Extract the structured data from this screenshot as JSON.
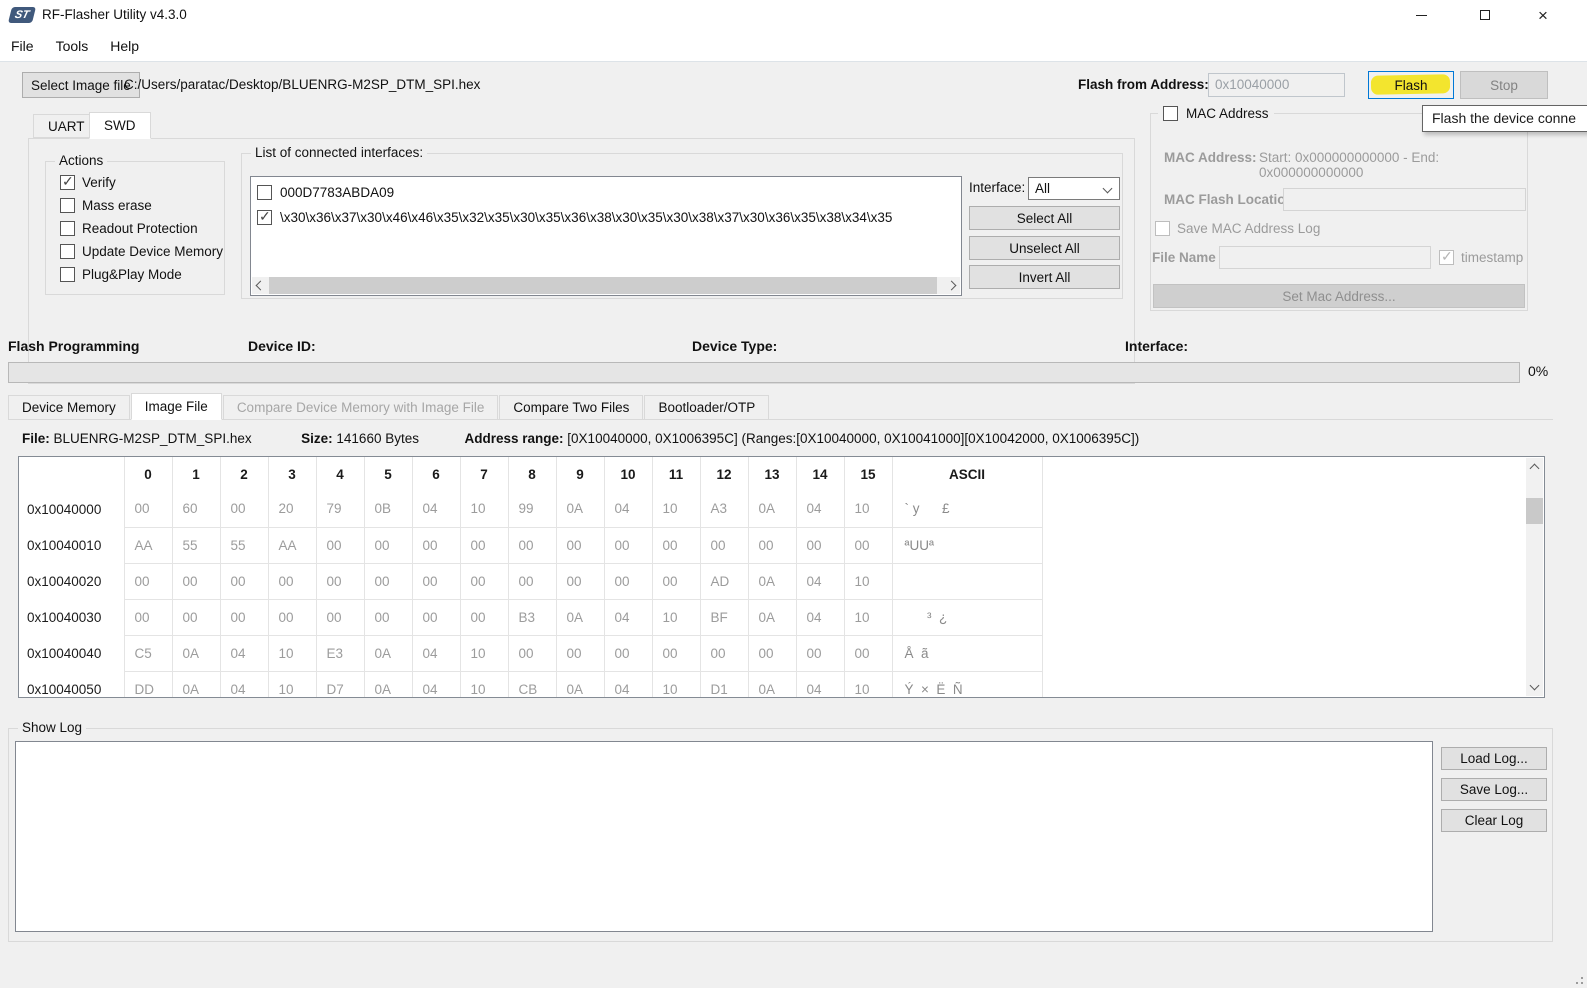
{
  "window": {
    "title": "RF-Flasher Utility v4.3.0",
    "logo_text": "ST"
  },
  "menu": {
    "items": [
      "File",
      "Tools",
      "Help"
    ]
  },
  "toolbar": {
    "select_image_label": "Select Image file",
    "file_path": "C:/Users/paratac/Desktop/BLUENRG-M2SP_DTM_SPI.hex",
    "flash_from_label": "Flash from Address:",
    "flash_from_value": "0x10040000",
    "flash_label": "Flash",
    "stop_label": "Stop",
    "tooltip_text": "Flash the device conne"
  },
  "interface_tabs": {
    "tabs": [
      "UART",
      "SWD"
    ],
    "active": "SWD"
  },
  "actions": {
    "title": "Actions",
    "items": [
      {
        "label": "Verify",
        "checked": true
      },
      {
        "label": "Mass erase",
        "checked": false
      },
      {
        "label": "Readout Protection",
        "checked": false
      },
      {
        "label": "Update Device Memory",
        "checked": false
      },
      {
        "label": "Plug&Play Mode",
        "checked": false
      }
    ]
  },
  "interfaces_group": {
    "title": "List of connected interfaces:",
    "items": [
      {
        "label": "000D7783ABDA09",
        "checked": false
      },
      {
        "label": "\\x30\\x36\\x37\\x30\\x46\\x46\\x35\\x32\\x35\\x30\\x35\\x36\\x38\\x30\\x35\\x30\\x38\\x37\\x30\\x36\\x35\\x38\\x34\\x35",
        "checked": true
      }
    ],
    "interface_label": "Interface:",
    "interface_value": "All",
    "select_all": "Select All",
    "unselect_all": "Unselect All",
    "invert_all": "Invert All"
  },
  "mac": {
    "checkbox_label": "MAC Address",
    "checkbox_checked": false,
    "address_label": "MAC Address:",
    "address_value": "Start: 0x000000000000 - End: 0x000000000000",
    "flash_location_label": "MAC Flash Location",
    "flash_location_value": "",
    "save_log_label": "Save MAC Address Log",
    "save_log_checked": false,
    "file_name_label": "File Name",
    "file_name_value": "",
    "timestamp_label": "timestamp",
    "timestamp_checked": true,
    "set_button_label": "Set Mac Address..."
  },
  "status": {
    "flash_programming": "Flash Programming",
    "device_id_label": "Device ID:",
    "device_type_label": "Device Type:",
    "interface_label": "Interface:",
    "progress_pct": "0%"
  },
  "main_tabs": {
    "tabs": [
      {
        "label": "Device Memory",
        "state": "normal"
      },
      {
        "label": "Image File",
        "state": "active"
      },
      {
        "label": "Compare Device Memory with Image File",
        "state": "disabled"
      },
      {
        "label": "Compare Two Files",
        "state": "normal"
      },
      {
        "label": "Bootloader/OTP",
        "state": "normal"
      }
    ]
  },
  "file_info": {
    "file_label": "File:",
    "file_value": "BLUENRG-M2SP_DTM_SPI.hex",
    "size_label": "Size:",
    "size_value": "141660 Bytes",
    "range_label": "Address range:",
    "range_value": "[0X10040000, 0X1006395C]",
    "ranges_value": "(Ranges:[0X10040000, 0X10041000][0X10042000, 0X1006395C])"
  },
  "hex_table": {
    "col_headers": [
      "0",
      "1",
      "2",
      "3",
      "4",
      "5",
      "6",
      "7",
      "8",
      "9",
      "10",
      "11",
      "12",
      "13",
      "14",
      "15"
    ],
    "ascii_header": "ASCII",
    "rows": [
      {
        "addr": "0x10040000",
        "bytes": [
          "00",
          "60",
          "00",
          "20",
          "79",
          "0B",
          "04",
          "10",
          "99",
          "0A",
          "04",
          "10",
          "A3",
          "0A",
          "04",
          "10"
        ],
        "ascii": "` y      £"
      },
      {
        "addr": "0x10040010",
        "bytes": [
          "AA",
          "55",
          "55",
          "AA",
          "00",
          "00",
          "00",
          "00",
          "00",
          "00",
          "00",
          "00",
          "00",
          "00",
          "00",
          "00"
        ],
        "ascii": "ªUUª"
      },
      {
        "addr": "0x10040020",
        "bytes": [
          "00",
          "00",
          "00",
          "00",
          "00",
          "00",
          "00",
          "00",
          "00",
          "00",
          "00",
          "00",
          "AD",
          "0A",
          "04",
          "10"
        ],
        "ascii": ""
      },
      {
        "addr": "0x10040030",
        "bytes": [
          "00",
          "00",
          "00",
          "00",
          "00",
          "00",
          "00",
          "00",
          "B3",
          "0A",
          "04",
          "10",
          "BF",
          "0A",
          "04",
          "10"
        ],
        "ascii": "      ³  ¿"
      },
      {
        "addr": "0x10040040",
        "bytes": [
          "C5",
          "0A",
          "04",
          "10",
          "E3",
          "0A",
          "04",
          "10",
          "00",
          "00",
          "00",
          "00",
          "00",
          "00",
          "00",
          "00"
        ],
        "ascii": "Å  ã"
      },
      {
        "addr": "0x10040050",
        "bytes": [
          "DD",
          "0A",
          "04",
          "10",
          "D7",
          "0A",
          "04",
          "10",
          "CB",
          "0A",
          "04",
          "10",
          "D1",
          "0A",
          "04",
          "10"
        ],
        "ascii": "Ý  ×  Ë  Ñ"
      }
    ]
  },
  "log": {
    "title": "Show Log",
    "content": "",
    "load_label": "Load Log...",
    "save_label": "Save Log...",
    "clear_label": "Clear Log"
  }
}
